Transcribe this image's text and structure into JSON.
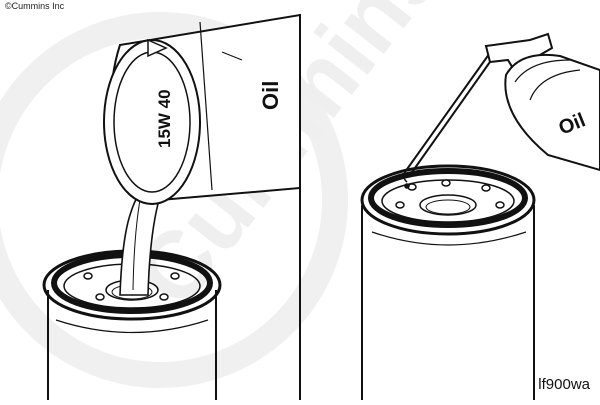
{
  "copyright": "©Cummins Inc",
  "watermark": "Cummins",
  "figure_id": "lf900wa",
  "left_panel": {
    "oil_label": "Oil",
    "grade_label": "15W 40"
  },
  "right_panel": {
    "oil_label": "Oil"
  },
  "colors": {
    "ink": "#111111",
    "watermark": "#ececec",
    "background": "#ffffff"
  }
}
